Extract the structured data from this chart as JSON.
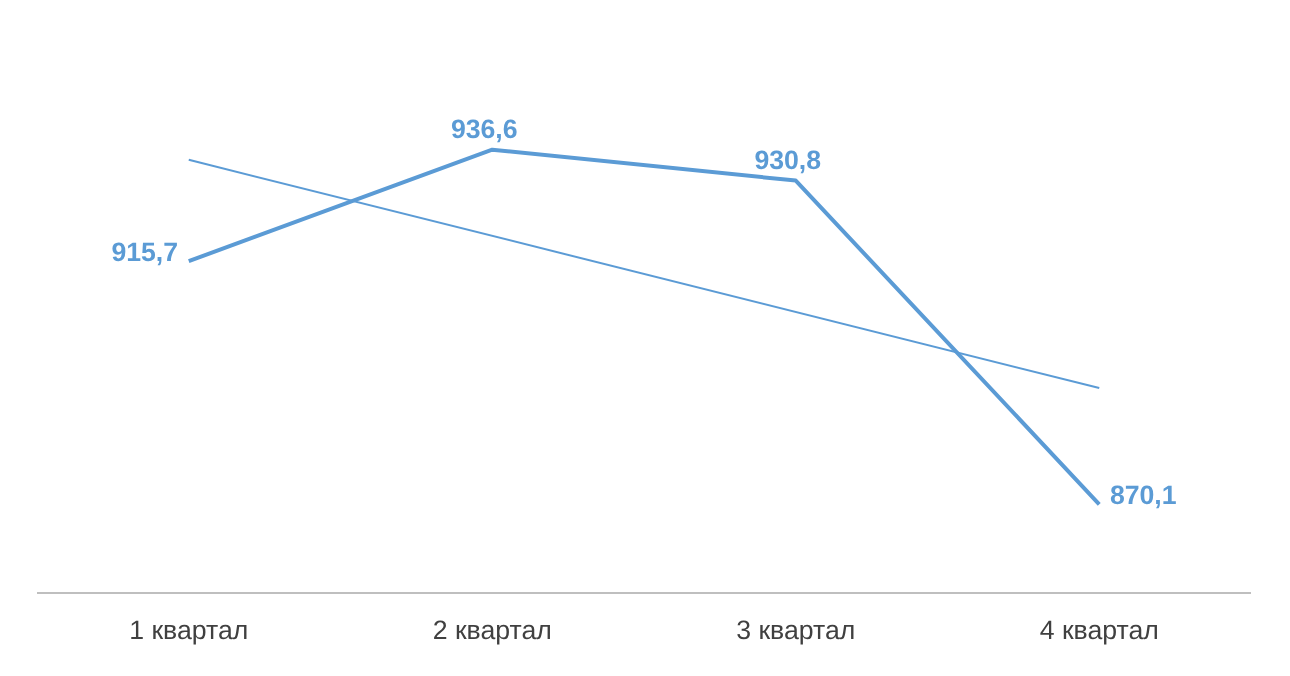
{
  "chart_data": {
    "type": "line",
    "categories": [
      "1 квартал",
      "2 квартал",
      "3 квартал",
      "4 квартал"
    ],
    "tick_labels": "x",
    "grid": false,
    "marker": "none",
    "series": [
      {
        "color": "#5b9bd5",
        "values": [
          915.7,
          936.6,
          930.8,
          870.1
        ],
        "value_labels": [
          "915,7",
          "936,6",
          "930,8",
          "870,1"
        ]
      },
      {
        "type": "line",
        "color": "#5b9bd5",
        "x": [
          "1 квартал",
          "4 квартал"
        ],
        "values": [
          934.7,
          891.9
        ]
      }
    ]
  }
}
